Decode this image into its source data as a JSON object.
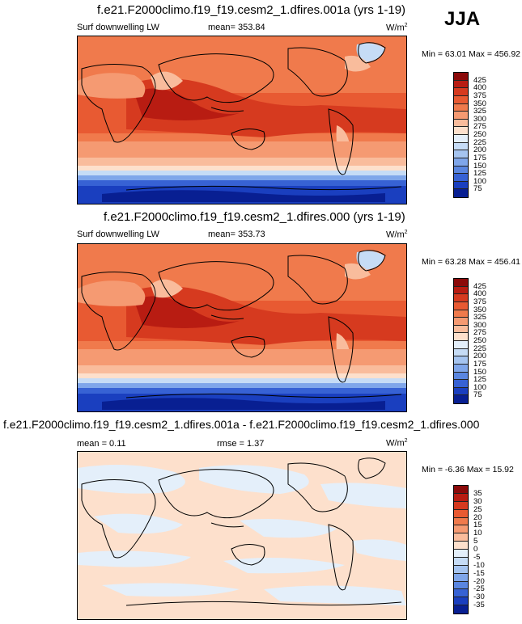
{
  "season": "JJA",
  "panels": [
    {
      "title": "f.e21.F2000climo.f19_f19.cesm2_1.dfires.001a (yrs 1-19)",
      "left_label": "Surf downwelling LW",
      "center_label": "mean= 353.84",
      "right_label": "W/m",
      "right_label_sup": "2",
      "minmax": "Min = 63.01 Max = 456.92",
      "colorbar": {
        "ticks": [
          "425",
          "400",
          "375",
          "350",
          "325",
          "300",
          "275",
          "250",
          "225",
          "200",
          "175",
          "150",
          "125",
          "100",
          "75"
        ],
        "colors": [
          "#8b0a0a",
          "#b81c12",
          "#d63a1f",
          "#e85a32",
          "#f07a4c",
          "#f59a72",
          "#f9bc9c",
          "#fde0cc",
          "#e4effa",
          "#c6dcf6",
          "#a5c4f0",
          "#7fa6ea",
          "#5a86e0",
          "#3762d4",
          "#1a3fbf",
          "#081f92"
        ]
      }
    },
    {
      "title": "f.e21.F2000climo.f19_f19.cesm2_1.dfires.000 (yrs 1-19)",
      "left_label": "Surf downwelling LW",
      "center_label": "mean= 353.73",
      "right_label": "W/m",
      "right_label_sup": "2",
      "minmax": "Min = 63.28 Max = 456.41",
      "colorbar": {
        "ticks": [
          "425",
          "400",
          "375",
          "350",
          "325",
          "300",
          "275",
          "250",
          "225",
          "200",
          "175",
          "150",
          "125",
          "100",
          "75"
        ],
        "colors": [
          "#8b0a0a",
          "#b81c12",
          "#d63a1f",
          "#e85a32",
          "#f07a4c",
          "#f59a72",
          "#f9bc9c",
          "#fde0cc",
          "#e4effa",
          "#c6dcf6",
          "#a5c4f0",
          "#7fa6ea",
          "#5a86e0",
          "#3762d4",
          "#1a3fbf",
          "#081f92"
        ]
      }
    },
    {
      "title": "f.e21.F2000climo.f19_f19.cesm2_1.dfires.001a - f.e21.F2000climo.f19_f19.cesm2_1.dfires.000",
      "left_label": "mean =  0.11",
      "center_label": "rmse =  1.37",
      "right_label": "W/m",
      "right_label_sup": "2",
      "minmax": "Min = -6.36 Max = 15.92",
      "colorbar": {
        "ticks": [
          "35",
          "30",
          "25",
          "20",
          "15",
          "10",
          "5",
          "0",
          "-5",
          "-10",
          "-15",
          "-20",
          "-25",
          "-30",
          "-35"
        ],
        "colors": [
          "#8b0a0a",
          "#b81c12",
          "#d63a1f",
          "#e85a32",
          "#f07a4c",
          "#f59a72",
          "#f9bc9c",
          "#fde0cc",
          "#e4effa",
          "#c6dcf6",
          "#a5c4f0",
          "#7fa6ea",
          "#5a86e0",
          "#3762d4",
          "#1a3fbf",
          "#081f92"
        ]
      }
    }
  ]
}
